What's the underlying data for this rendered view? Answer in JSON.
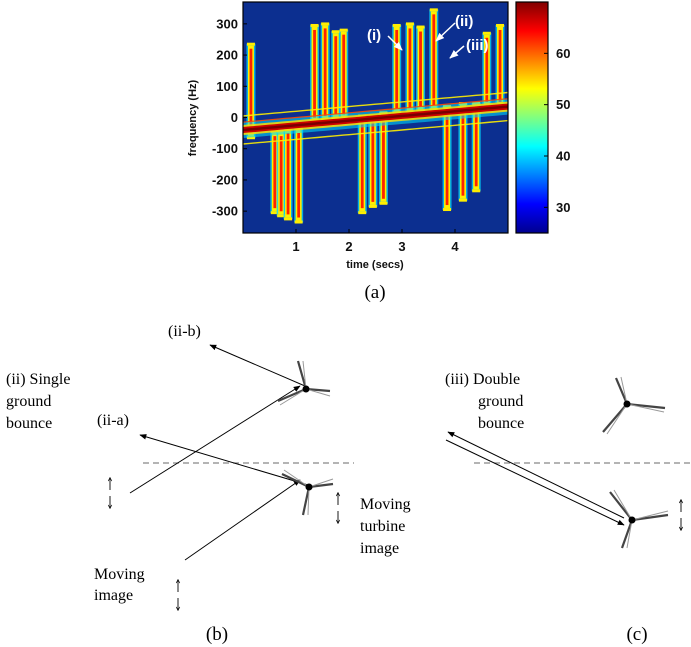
{
  "chart_data": {
    "type": "heatmap",
    "title": "",
    "xlabel": "time (secs)",
    "ylabel": "frequency (Hz)",
    "xlim": [
      0,
      5
    ],
    "ylim": [
      -370,
      370
    ],
    "xticks": [
      1,
      2,
      3,
      4
    ],
    "yticks": [
      300,
      200,
      100,
      0,
      -100,
      -200,
      -300
    ],
    "colorbar": {
      "range": [
        25,
        70
      ],
      "ticks": [
        60,
        50,
        40,
        30
      ]
    },
    "flashes": [
      {
        "t": 0.15,
        "fmin": -60,
        "fmax": 230
      },
      {
        "t": 0.6,
        "fmin": -300,
        "fmax": -50
      },
      {
        "t": 0.72,
        "fmin": -310,
        "fmax": -50
      },
      {
        "t": 0.85,
        "fmin": -320,
        "fmax": -40
      },
      {
        "t": 1.05,
        "fmin": -330,
        "fmax": -40
      },
      {
        "t": 1.35,
        "fmin": -10,
        "fmax": 290
      },
      {
        "t": 1.55,
        "fmin": -5,
        "fmax": 295
      },
      {
        "t": 1.75,
        "fmin": 0,
        "fmax": 270
      },
      {
        "t": 1.9,
        "fmin": 0,
        "fmax": 275
      },
      {
        "t": 2.25,
        "fmin": -300,
        "fmax": 0
      },
      {
        "t": 2.45,
        "fmin": -280,
        "fmax": 0
      },
      {
        "t": 2.65,
        "fmin": -270,
        "fmax": 10
      },
      {
        "t": 2.9,
        "fmin": 20,
        "fmax": 290
      },
      {
        "t": 3.15,
        "fmin": 20,
        "fmax": 295
      },
      {
        "t": 3.35,
        "fmin": 25,
        "fmax": 285
      },
      {
        "t": 3.6,
        "fmin": 30,
        "fmax": 340
      },
      {
        "t": 3.85,
        "fmin": -290,
        "fmax": 30
      },
      {
        "t": 4.15,
        "fmin": -260,
        "fmax": 40
      },
      {
        "t": 4.4,
        "fmin": -230,
        "fmax": 40
      },
      {
        "t": 4.6,
        "fmin": 40,
        "fmax": 265
      },
      {
        "t": 4.85,
        "fmin": 40,
        "fmax": 290
      }
    ],
    "annotations": [
      "(i)",
      "(ii)",
      "(iii)"
    ]
  },
  "captions": {
    "a": "(a)",
    "b": "(b)",
    "c": "(c)"
  },
  "diagram_b": {
    "label_ii_b": "(ii-b)",
    "label_ii_a": "(ii-a)",
    "title_line1": "(ii) Single",
    "title_line2": "ground",
    "title_line3": "bounce",
    "moving_turbine_line1": "Moving",
    "moving_turbine_line2": "turbine",
    "moving_turbine_line3": "image",
    "moving_image_line1": "Moving",
    "moving_image_line2": "image"
  },
  "diagram_c": {
    "title_line1": "(iii) Double",
    "title_line2": "ground",
    "title_line3": "bounce"
  }
}
